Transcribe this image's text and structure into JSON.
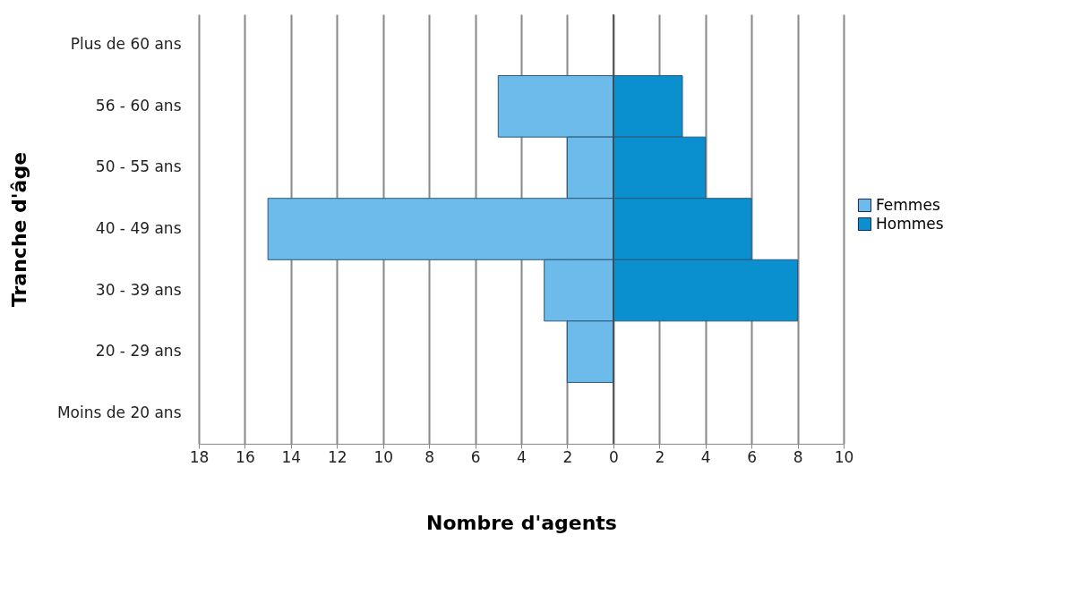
{
  "chart_data": {
    "type": "bar",
    "orientation": "horizontal",
    "stacked": true,
    "xlabel": "Nombre d'agents",
    "ylabel": "Tranche d'âge",
    "categories": [
      "Plus de 60 ans",
      "56 - 60 ans",
      "50 - 55 ans",
      "40 - 49 ans",
      "30 - 39 ans",
      "20 - 29 ans",
      "Moins de 20 ans"
    ],
    "series": [
      {
        "name": "Femmes",
        "color": "#6cbbea",
        "values": [
          null,
          -5,
          -2,
          -15,
          -3,
          -2,
          null
        ]
      },
      {
        "name": "Hommes",
        "color": "#0a8fcf",
        "values": [
          null,
          3,
          4,
          6,
          8,
          null,
          null
        ]
      }
    ],
    "xlim": [
      -18,
      10
    ],
    "xticks": [
      {
        "value": -18,
        "label": "18"
      },
      {
        "value": -16,
        "label": "16"
      },
      {
        "value": -14,
        "label": "14"
      },
      {
        "value": -12,
        "label": "12"
      },
      {
        "value": -10,
        "label": "10"
      },
      {
        "value": -8,
        "label": "8"
      },
      {
        "value": -6,
        "label": "6"
      },
      {
        "value": -4,
        "label": "4"
      },
      {
        "value": -2,
        "label": "2"
      },
      0,
      2,
      4,
      6,
      8,
      10
    ],
    "grid": "x",
    "legend": "right"
  }
}
